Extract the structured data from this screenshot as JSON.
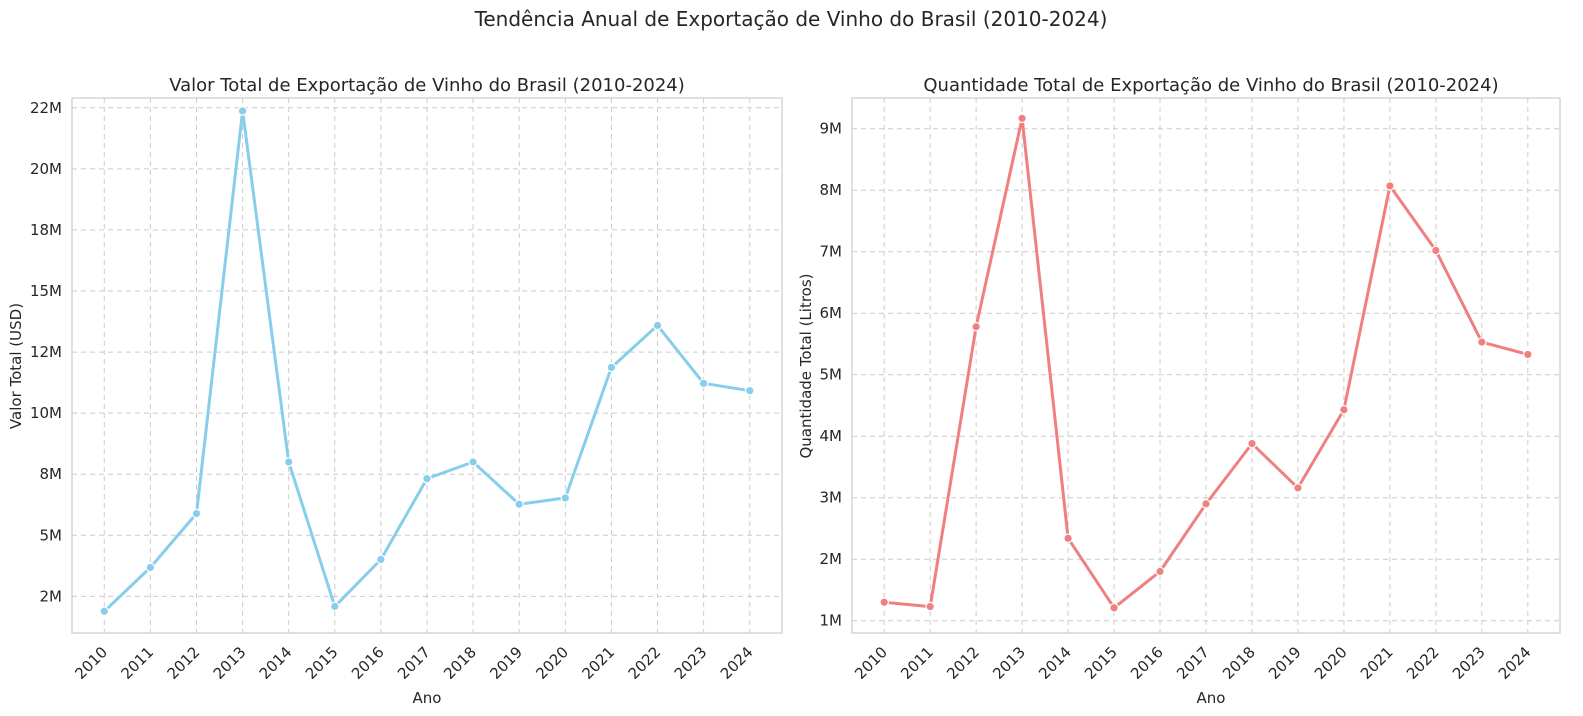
{
  "figure": {
    "title": "Tendência Anual de Exportação de Vinho do Brasil (2010-2024)"
  },
  "chart_data": [
    {
      "type": "line",
      "title": "Valor Total de Exportação de Vinho do Brasil (2010-2024)",
      "xlabel": "Ano",
      "ylabel": "Valor Total (USD)",
      "x": [
        "2010",
        "2011",
        "2012",
        "2013",
        "2014",
        "2015",
        "2016",
        "2017",
        "2018",
        "2019",
        "2020",
        "2021",
        "2022",
        "2023",
        "2024"
      ],
      "series": [
        {
          "values": [
            1890000,
            3680000,
            5890000,
            22370000,
            8000000,
            2090000,
            4010000,
            7320000,
            8000000,
            6270000,
            6530000,
            11870000,
            13590000,
            11220000,
            10920000
          ]
        }
      ],
      "ylim": [
        1000000,
        22900000
      ],
      "yticks": [
        2500000,
        5000000,
        7500000,
        10000000,
        12500000,
        15000000,
        17500000,
        20000000,
        22500000
      ],
      "ytick_labels": [
        "2M",
        "5M",
        "8M",
        "10M",
        "12M",
        "15M",
        "18M",
        "20M",
        "22M"
      ],
      "color": "#87CEEB",
      "grid": true
    },
    {
      "type": "line",
      "title": "Quantidade Total de Exportação de Vinho do Brasil (2010-2024)",
      "xlabel": "Ano",
      "ylabel": "Quantidade Total (Litros)",
      "x": [
        "2010",
        "2011",
        "2012",
        "2013",
        "2014",
        "2015",
        "2016",
        "2017",
        "2018",
        "2019",
        "2020",
        "2021",
        "2022",
        "2023",
        "2024"
      ],
      "series": [
        {
          "values": [
            1300000,
            1230000,
            5780000,
            9170000,
            2340000,
            1210000,
            1800000,
            2900000,
            3880000,
            3160000,
            4430000,
            8070000,
            7020000,
            5530000,
            5330000
          ]
        }
      ],
      "ylim": [
        800000,
        9500000
      ],
      "yticks": [
        1000000,
        2000000,
        3000000,
        4000000,
        5000000,
        6000000,
        7000000,
        8000000,
        9000000
      ],
      "ytick_labels": [
        "1M",
        "2M",
        "3M",
        "4M",
        "5M",
        "6M",
        "7M",
        "8M",
        "9M"
      ],
      "color": "#F08080",
      "grid": true
    }
  ]
}
